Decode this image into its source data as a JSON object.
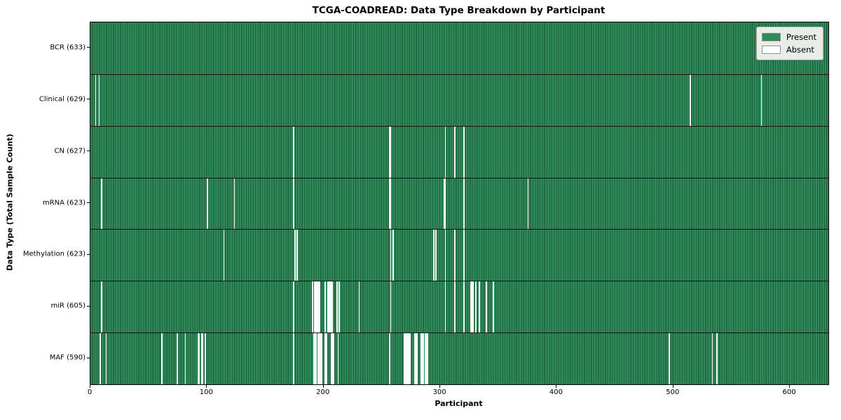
{
  "chart_data": {
    "type": "heatmap",
    "title": "TCGA-COADREAD: Data Type Breakdown by Participant",
    "xlabel": "Participant",
    "ylabel": "Data Type (Total Sample Count)",
    "x_ticks": [
      0,
      100,
      200,
      300,
      400,
      500,
      600
    ],
    "x_range": [
      0,
      633
    ],
    "n_participants": 633,
    "grid": false,
    "legend_position": "upper right",
    "colors": {
      "present": "#2e8b57",
      "present_edge": "#1f6241",
      "absent": "#ffffff",
      "legend_bg": "#e8ede8"
    },
    "legend": [
      {
        "label": "Present",
        "color": "#2e8b57"
      },
      {
        "label": "Absent",
        "color": "#ffffff"
      }
    ],
    "rows": [
      {
        "label": "BCR (633)",
        "name": "BCR",
        "total_samples": 633,
        "absent_participants": []
      },
      {
        "label": "Clinical (629)",
        "name": "Clinical",
        "total_samples": 629,
        "absent_participants": [
          4,
          7,
          514,
          575
        ]
      },
      {
        "label": "CN (627)",
        "name": "CN",
        "total_samples": 627,
        "absent_participants": [
          174,
          256,
          257,
          304,
          312,
          320
        ]
      },
      {
        "label": "mRNA (623)",
        "name": "mRNA",
        "total_samples": 623,
        "absent_participants": [
          9,
          100,
          123,
          174,
          256,
          257,
          303,
          304,
          320,
          375
        ]
      },
      {
        "label": "Methylation (623)",
        "name": "Methylation",
        "total_samples": 623,
        "absent_participants": [
          114,
          175,
          177,
          257,
          259,
          294,
          296,
          304,
          312,
          320
        ]
      },
      {
        "label": "miR (605)",
        "name": "miR",
        "total_samples": 605,
        "absent_participants": [
          9,
          174,
          190,
          192,
          193,
          194,
          195,
          196,
          201,
          203,
          204,
          205,
          206,
          207,
          211,
          213,
          230,
          257,
          304,
          312,
          320,
          326,
          327,
          328,
          330,
          333,
          339,
          345
        ]
      },
      {
        "label": "MAF (590)",
        "name": "MAF",
        "total_samples": 590,
        "absent_participants": [
          8,
          13,
          61,
          74,
          81,
          92,
          93,
          95,
          96,
          98,
          174,
          191,
          192,
          193,
          195,
          196,
          197,
          198,
          201,
          202,
          206,
          207,
          208,
          212,
          256,
          269,
          270,
          271,
          272,
          273,
          274,
          278,
          279,
          280,
          283,
          284,
          285,
          287,
          288,
          289,
          496,
          533,
          537
        ]
      }
    ]
  }
}
